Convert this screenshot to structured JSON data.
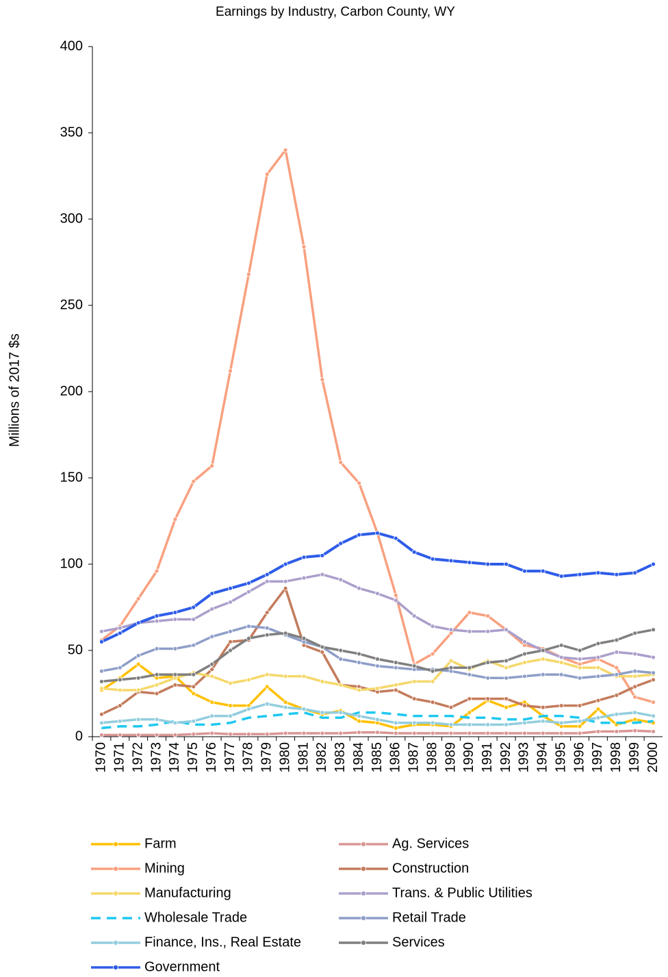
{
  "chart_data": {
    "type": "line",
    "title": "Earnings by Industry, Carbon County, WY",
    "y_label": "Millions of 2017 $s",
    "categories": [
      "1970",
      "1971",
      "1972",
      "1973",
      "1974",
      "1975",
      "1976",
      "1977",
      "1978",
      "1979",
      "1980",
      "1981",
      "1982",
      "1983",
      "1984",
      "1985",
      "1986",
      "1987",
      "1988",
      "1989",
      "1990",
      "1991",
      "1992",
      "1993",
      "1994",
      "1995",
      "1996",
      "1997",
      "1998",
      "1999",
      "2000"
    ],
    "ylim": [
      0,
      400
    ],
    "yticks": [
      0,
      50,
      100,
      150,
      200,
      250,
      300,
      350,
      400
    ],
    "grid": false,
    "legend": "bottom",
    "series": [
      {
        "name": "Farm",
        "color": "#ffc000",
        "values": [
          27,
          34,
          42,
          34,
          35,
          25,
          20,
          18,
          18,
          29,
          20,
          16,
          13,
          15,
          9,
          8,
          5,
          7,
          7,
          6,
          14,
          21,
          17,
          20,
          12,
          6,
          6,
          16,
          7,
          10,
          8
        ]
      },
      {
        "name": "Ag. Services",
        "color": "#d99694",
        "values": [
          1,
          1,
          1,
          1,
          1,
          1.5,
          2,
          1.5,
          1.5,
          1.5,
          2,
          2,
          2,
          2,
          2.5,
          2.5,
          2,
          2,
          2,
          2,
          2,
          2,
          2,
          2,
          2,
          2,
          2,
          3,
          3,
          3.5,
          3
        ]
      },
      {
        "name": "Mining",
        "color": "#f8a07f",
        "values": [
          56,
          64,
          80,
          96,
          126,
          148,
          157,
          212,
          268,
          326,
          340,
          284,
          207,
          159,
          147,
          118,
          82,
          42,
          48,
          60,
          72,
          70,
          62,
          53,
          51,
          46,
          42,
          45,
          40,
          23,
          20
        ]
      },
      {
        "name": "Construction",
        "color": "#c47b5c",
        "values": [
          13,
          18,
          26,
          25,
          30,
          29,
          39,
          55,
          56,
          72,
          86,
          53,
          49,
          30,
          29,
          26,
          27,
          22,
          20,
          17,
          22,
          22,
          22,
          18,
          17,
          18,
          18,
          21,
          24,
          29,
          33
        ]
      },
      {
        "name": "Manufacturing",
        "color": "#f5d86a",
        "values": [
          28,
          27,
          27,
          30,
          34,
          37,
          35,
          31,
          33,
          36,
          35,
          35,
          32,
          30,
          27,
          28,
          30,
          32,
          32,
          44,
          39,
          44,
          40,
          43,
          45,
          43,
          40,
          40,
          35,
          35,
          36
        ]
      },
      {
        "name": "Trans. & Public Utilities",
        "color": "#ab9fcb",
        "values": [
          61,
          63,
          66,
          67,
          68,
          68,
          74,
          78,
          84,
          90,
          90,
          92,
          94,
          91,
          86,
          83,
          79,
          70,
          64,
          62,
          61,
          61,
          62,
          55,
          50,
          46,
          45,
          46,
          49,
          48,
          46
        ]
      },
      {
        "name": "Wholesale Trade",
        "color": "#1ec8f0",
        "dash": true,
        "values": [
          5,
          6,
          6,
          7,
          9,
          7,
          7,
          8,
          11,
          12,
          13,
          14,
          11,
          11,
          14,
          14,
          13,
          12,
          12,
          12,
          11,
          11,
          10,
          10,
          12,
          12,
          11,
          8,
          8,
          8,
          9
        ]
      },
      {
        "name": "Retail Trade",
        "color": "#8e9ec8",
        "values": [
          38,
          40,
          47,
          51,
          51,
          53,
          58,
          61,
          64,
          63,
          59,
          55,
          52,
          45,
          43,
          41,
          40,
          39,
          39,
          38,
          36,
          34,
          34,
          35,
          36,
          36,
          34,
          35,
          36,
          38,
          37
        ]
      },
      {
        "name": "Finance, Ins., Real Estate",
        "color": "#93cddd",
        "values": [
          8,
          9,
          10,
          10,
          8,
          9,
          12,
          12,
          16,
          19,
          17,
          16,
          14,
          14,
          12,
          10,
          8,
          8,
          8,
          7,
          7,
          7,
          7,
          8,
          9,
          8,
          9,
          11,
          13,
          14,
          12
        ]
      },
      {
        "name": "Services",
        "color": "#7f7f7f",
        "values": [
          32,
          33,
          34,
          36,
          36,
          36,
          42,
          50,
          57,
          59,
          60,
          57,
          52,
          50,
          48,
          45,
          43,
          41,
          38,
          40,
          40,
          43,
          44,
          48,
          50,
          53,
          50,
          54,
          56,
          60,
          62
        ]
      },
      {
        "name": "Government",
        "color": "#2e5ce8",
        "values": [
          55,
          60,
          66,
          70,
          72,
          75,
          83,
          86,
          89,
          94,
          100,
          104,
          105,
          112,
          117,
          118,
          115,
          107,
          103,
          102,
          101,
          100,
          100,
          96,
          96,
          93,
          94,
          95,
          94,
          95,
          100
        ]
      }
    ]
  }
}
